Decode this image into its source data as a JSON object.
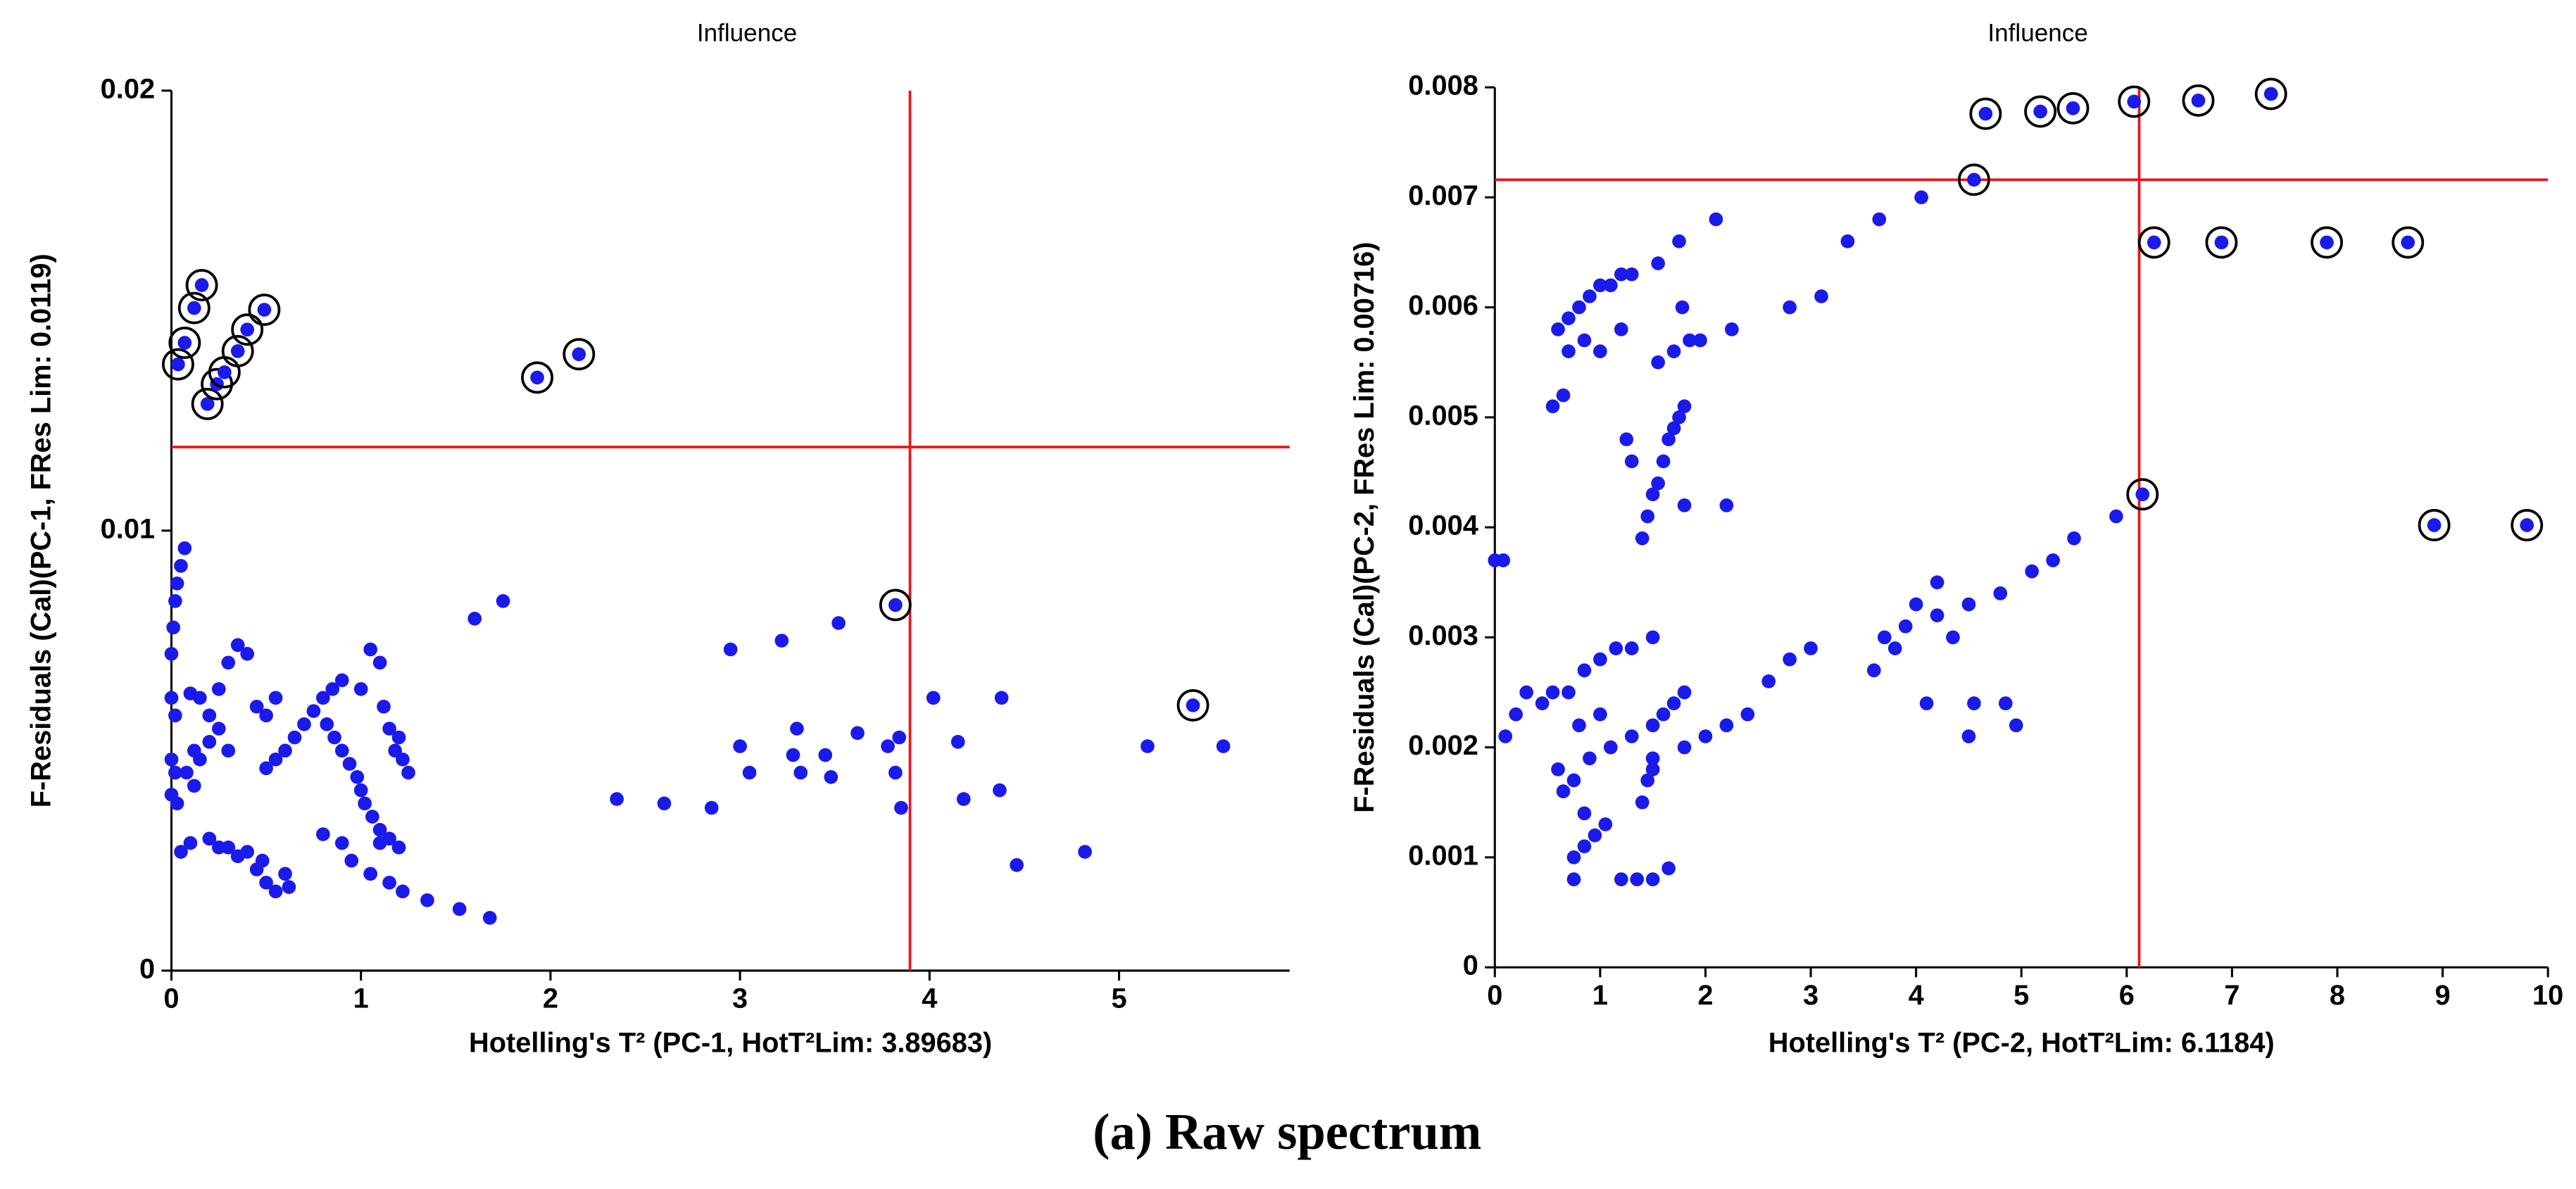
{
  "caption": "(a) Raw spectrum",
  "chart_data": [
    {
      "type": "scatter",
      "title": "Influence",
      "x_label": "Hotelling's T² (PC-1, HotT²Lim: 3.89683)",
      "y_label": "F-Residuals (Cal)(PC-1, FRes Lim: 0.0119)",
      "xlim": [
        0,
        5.9
      ],
      "xticks": [
        0,
        1,
        2,
        3,
        4,
        5
      ],
      "ylim": [
        0,
        0.02
      ],
      "yticks": [
        0,
        0.01,
        0.02
      ],
      "xline": 3.89683,
      "yline": 0.0119,
      "line_color": "#e8141b",
      "series": [
        {
          "color": "#1a1aeb",
          "x": [
            0.0,
            0.01,
            0.02,
            0.03,
            0.05,
            0.07,
            0.0,
            0.02,
            0.0,
            0.02,
            0.0,
            0.03,
            1.6,
            1.75,
            2.35,
            2.6,
            2.85,
            2.95,
            3.0,
            3.05,
            3.22,
            3.28,
            3.3,
            3.32,
            3.45,
            3.48,
            3.52,
            3.62,
            3.78,
            3.82,
            3.84,
            3.85,
            4.02,
            4.15,
            4.18,
            4.37,
            4.38,
            4.46,
            4.82,
            5.15,
            5.55,
            1.05,
            1.15,
            1.22,
            1.35,
            1.52,
            1.68,
            0.05,
            0.1,
            0.2,
            0.3,
            0.4,
            0.45,
            0.5,
            0.55,
            0.6,
            0.62,
            0.35,
            0.25,
            0.48,
            0.1,
            0.15,
            0.2,
            0.25,
            0.3,
            0.35,
            0.4,
            0.45,
            0.5,
            0.55,
            0.12,
            0.15,
            0.2,
            0.25,
            0.3,
            0.08,
            0.12,
            0.5,
            0.55,
            0.6,
            0.65,
            0.7,
            0.75,
            0.8,
            0.85,
            0.9,
            0.82,
            0.86,
            0.9,
            0.94,
            0.98,
            1.0,
            1.02,
            1.06,
            1.1,
            1.15,
            1.2,
            1.0,
            1.05,
            1.1,
            1.12,
            1.15,
            1.18,
            1.22,
            1.25,
            1.2,
            0.8,
            0.9,
            0.95,
            1.1
          ],
          "values": [
            0.0072,
            0.0078,
            0.0084,
            0.0088,
            0.0092,
            0.0096,
            0.0062,
            0.0058,
            0.0048,
            0.0045,
            0.004,
            0.0038,
            0.008,
            0.0084,
            0.0039,
            0.0038,
            0.0037,
            0.0073,
            0.0051,
            0.0045,
            0.0075,
            0.0049,
            0.0055,
            0.0045,
            0.0049,
            0.0044,
            0.0079,
            0.0054,
            0.0051,
            0.0045,
            0.0053,
            0.0037,
            0.0062,
            0.0052,
            0.0039,
            0.0041,
            0.0062,
            0.0024,
            0.0027,
            0.0051,
            0.0051,
            0.0022,
            0.002,
            0.0018,
            0.0016,
            0.0014,
            0.0012,
            0.0027,
            0.0029,
            0.003,
            0.0028,
            0.0027,
            0.0023,
            0.002,
            0.0018,
            0.0022,
            0.0019,
            0.0026,
            0.0028,
            0.0025,
            0.0063,
            0.0062,
            0.0058,
            0.0064,
            0.007,
            0.0074,
            0.0072,
            0.006,
            0.0058,
            0.0062,
            0.005,
            0.0048,
            0.0052,
            0.0055,
            0.005,
            0.0045,
            0.0042,
            0.0046,
            0.0048,
            0.005,
            0.0053,
            0.0056,
            0.0059,
            0.0062,
            0.0064,
            0.0066,
            0.0056,
            0.0053,
            0.005,
            0.0047,
            0.0044,
            0.0041,
            0.0038,
            0.0035,
            0.0032,
            0.003,
            0.0028,
            0.0064,
            0.0073,
            0.007,
            0.006,
            0.0055,
            0.005,
            0.0048,
            0.0045,
            0.0053,
            0.0031,
            0.0029,
            0.0025,
            0.0029
          ]
        },
        {
          "color": "#1a1aeb",
          "marker": "circled",
          "x": [
            0.035,
            0.07,
            0.12,
            0.16,
            0.19,
            0.24,
            0.28,
            0.35,
            0.4,
            0.49,
            1.93,
            2.15,
            3.82,
            5.39
          ],
          "values": [
            0.01378,
            0.01427,
            0.01506,
            0.01558,
            0.01288,
            0.01333,
            0.0136,
            0.01408,
            0.01457,
            0.01502,
            0.01348,
            0.01401,
            0.00831,
            0.00603
          ]
        }
      ]
    },
    {
      "type": "scatter",
      "title": "Influence",
      "x_label": "Hotelling's T² (PC-2, HotT²Lim: 6.1184)",
      "y_label": "F-Residuals (Cal)(PC-2, FRes Lim: 0.00716)",
      "xlim": [
        0,
        10
      ],
      "xticks": [
        0,
        1,
        2,
        3,
        4,
        5,
        6,
        7,
        8,
        9,
        10
      ],
      "ylim": [
        0,
        0.008
      ],
      "yticks": [
        0,
        0.001,
        0.002,
        0.003,
        0.004,
        0.005,
        0.006,
        0.007,
        0.008
      ],
      "xline": 6.1184,
      "yline": 0.00716,
      "line_color": "#e8141b",
      "series": [
        {
          "color": "#1a1aeb",
          "x": [
            0.6,
            0.7,
            0.8,
            0.9,
            1.0,
            1.1,
            1.2,
            1.3,
            0.7,
            0.85,
            1.0,
            1.2,
            0.55,
            0.65,
            1.55,
            1.7,
            1.55,
            1.75,
            1.85,
            1.95,
            2.1,
            2.25,
            1.25,
            1.3,
            1.4,
            1.45,
            1.5,
            1.55,
            1.6,
            1.65,
            1.7,
            1.75,
            1.8,
            1.8,
            2.2,
            1.78,
            1.5,
            1.8,
            2.0,
            2.2,
            2.4,
            2.6,
            2.8,
            3.0,
            3.7,
            3.9,
            4.2,
            4.5,
            4.8,
            5.1,
            5.3,
            5.5,
            5.9,
            2.8,
            3.1,
            3.35,
            3.65,
            4.05,
            3.6,
            3.8,
            4.0,
            4.1,
            4.2,
            4.35,
            4.55,
            4.5,
            4.85,
            4.95,
            0.0,
            0.08,
            0.1,
            0.2,
            0.3,
            0.45,
            0.55,
            0.7,
            0.85,
            1.0,
            1.15,
            1.3,
            1.5,
            0.8,
            1.0,
            0.6,
            0.65,
            0.75,
            0.9,
            1.1,
            1.3,
            1.5,
            1.6,
            1.7,
            1.8,
            0.75,
            0.85,
            0.95,
            1.05,
            0.75,
            1.2,
            1.35,
            1.5,
            1.65,
            1.4,
            1.45,
            1.5,
            0.85
          ],
          "values": [
            0.0058,
            0.0059,
            0.006,
            0.0061,
            0.0062,
            0.0062,
            0.0063,
            0.0063,
            0.0056,
            0.0057,
            0.0056,
            0.0058,
            0.0051,
            0.0052,
            0.0055,
            0.0056,
            0.0064,
            0.0066,
            0.0057,
            0.0057,
            0.0068,
            0.0058,
            0.0048,
            0.0046,
            0.0039,
            0.0041,
            0.0043,
            0.0044,
            0.0046,
            0.0048,
            0.0049,
            0.005,
            0.0051,
            0.0042,
            0.0042,
            0.006,
            0.0019,
            0.002,
            0.0021,
            0.0022,
            0.0023,
            0.0026,
            0.0028,
            0.0029,
            0.003,
            0.0031,
            0.0032,
            0.0033,
            0.0034,
            0.0036,
            0.0037,
            0.0039,
            0.0041,
            0.006,
            0.0061,
            0.0066,
            0.0068,
            0.007,
            0.0027,
            0.0029,
            0.0033,
            0.0024,
            0.0035,
            0.003,
            0.0024,
            0.0021,
            0.0024,
            0.0022,
            0.0037,
            0.0037,
            0.0021,
            0.0023,
            0.0025,
            0.0024,
            0.0025,
            0.0025,
            0.0027,
            0.0028,
            0.0029,
            0.0029,
            0.003,
            0.0022,
            0.0023,
            0.0018,
            0.0016,
            0.0017,
            0.0019,
            0.002,
            0.0021,
            0.0022,
            0.0023,
            0.0024,
            0.0025,
            0.001,
            0.0011,
            0.0012,
            0.0013,
            0.0008,
            0.0008,
            0.0008,
            0.0008,
            0.0009,
            0.0015,
            0.0017,
            0.0018,
            0.0014
          ]
        },
        {
          "color": "#1a1aeb",
          "marker": "circled",
          "x": [
            4.55,
            4.66,
            5.18,
            5.49,
            6.07,
            6.68,
            7.37,
            6.26,
            6.9,
            7.9,
            8.67,
            6.15,
            8.92,
            9.8
          ],
          "values": [
            0.00716,
            0.00776,
            0.00778,
            0.00781,
            0.00787,
            0.00788,
            0.00794,
            0.00659,
            0.00659,
            0.00659,
            0.00659,
            0.0043,
            0.00402,
            0.00402
          ]
        }
      ]
    }
  ]
}
